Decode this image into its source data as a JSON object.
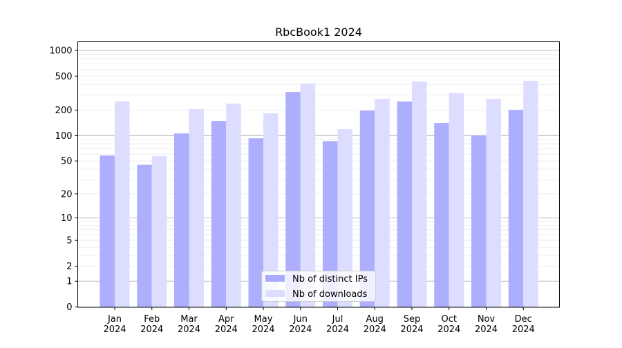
{
  "chart_data": {
    "type": "bar",
    "title": "RbcBook1 2024",
    "xlabel": "",
    "ylabel": "",
    "yscale": "log(1+y)",
    "ylim": [
      0,
      1200
    ],
    "yticks": [
      0,
      1,
      2,
      5,
      10,
      20,
      50,
      100,
      200,
      500,
      1000
    ],
    "grid": true,
    "legend_position": "lower-center",
    "categories": [
      "Jan\n2024",
      "Feb\n2024",
      "Mar\n2024",
      "Apr\n2024",
      "May\n2024",
      "Jun\n2024",
      "Jul\n2024",
      "Aug\n2024",
      "Sep\n2024",
      "Oct\n2024",
      "Nov\n2024",
      "Dec\n2024"
    ],
    "series": [
      {
        "name": "Nb of distinct IPs",
        "color": "#aaaaff",
        "values": [
          58,
          45,
          106,
          149,
          93,
          326,
          86,
          197,
          252,
          141,
          100,
          201
        ]
      },
      {
        "name": "Nb of downloads",
        "color": "#ddddff",
        "values": [
          252,
          57,
          205,
          238,
          183,
          408,
          119,
          271,
          432,
          315,
          271,
          440
        ]
      }
    ]
  }
}
